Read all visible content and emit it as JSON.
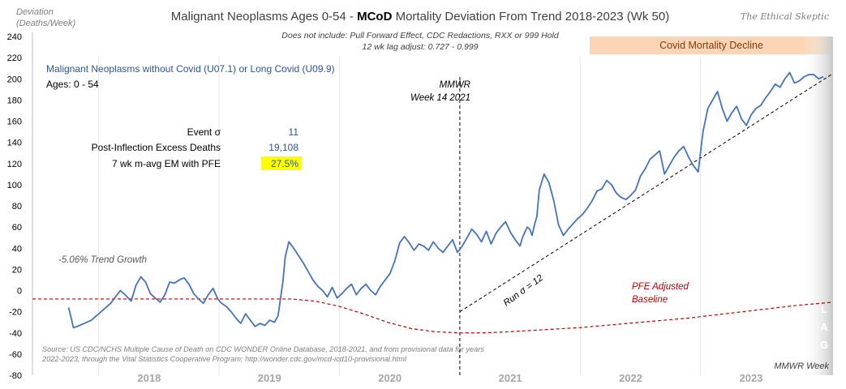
{
  "chart_data": {
    "type": "line",
    "title_prefix": "Malignant Neoplasms Ages 0-54 - ",
    "title_bold": "MCoD",
    "title_suffix": " Mortality Deviation From Trend  2018-2023 (Wk 50)",
    "subtitle_1": "Does not include: Pull Forward Effect,  CDC Redactions, RXX or 999 Hold",
    "subtitle_2": "12 wk lag adjust: 0.727 - 0.999",
    "watermark": "The Ethical Skeptic",
    "ylabel_1": "Deviation",
    "ylabel_2": "(Deaths/Week)",
    "xlabel": "MMWR Week",
    "ylim": [
      -80,
      240
    ],
    "y_ticks": [
      "240",
      "220",
      "200",
      "180",
      "160",
      "140",
      "120",
      "100",
      "80",
      "60",
      "40",
      "20",
      "0",
      "-20",
      "-40",
      "-60",
      "-80"
    ],
    "x_ticks": [
      "2018",
      "2019",
      "2020",
      "2021",
      "2022",
      "2023"
    ],
    "series_name": "Malignant Neoplasms without Covid (U07.1) or Long Covid (U09.9)",
    "ages_label": "Ages: 0 - 54",
    "covid_band_label": "Covid Mortality Decline",
    "mmwr_line_1": "MMWR",
    "mmwr_line_2": "Week 14 2021",
    "trend_growth": "-5.06% Trend Growth",
    "run_label": "Run σ = 12",
    "pfe_line_1": "PFE Adjusted",
    "pfe_line_2": "Baseline",
    "lag_letters": [
      "L",
      "A",
      "G"
    ],
    "stats": [
      {
        "label": "Event σ",
        "value": "11"
      },
      {
        "label": "Post-Inflection Excess Deaths",
        "value": "19,108"
      },
      {
        "label": "7 wk m-avg EM with PFE",
        "value": "27.5%"
      }
    ],
    "source_1": "Source: US CDC/NCHS Multiple Cause of Death on CDC WONDER Online Database, 2018-2021, and from provisional data for years",
    "source_2": "2022-2023, through the Vital Statistics Cooperative Program; http://wonder.cdc.gov/mcd-icd10-provisional.html",
    "series_x": [
      2017.75,
      2017.77,
      2017.79,
      2017.82,
      2017.86,
      2017.9,
      2017.94,
      2017.98,
      2018.02,
      2018.06,
      2018.1,
      2018.14,
      2018.18,
      2018.22,
      2018.27,
      2018.31,
      2018.35,
      2018.39,
      2018.43,
      2018.47,
      2018.51,
      2018.55,
      2018.59,
      2018.63,
      2018.67,
      2018.71,
      2018.75,
      2018.79,
      2018.83,
      2018.87,
      2018.91,
      2018.95,
      2018.99,
      2019.02,
      2019.06,
      2019.1,
      2019.14,
      2019.18,
      2019.22,
      2019.26,
      2019.3,
      2019.34,
      2019.38,
      2019.42,
      2019.46,
      2019.49,
      2019.51,
      2019.53,
      2019.55,
      2019.58,
      2019.62,
      2019.66,
      2019.7,
      2019.74,
      2019.78,
      2019.82,
      2019.86,
      2019.9,
      2019.94,
      2019.98,
      2020.02,
      2020.06,
      2020.1,
      2020.14,
      2020.18,
      2020.22,
      2020.26,
      2020.3,
      2020.34,
      2020.38,
      2020.42,
      2020.46,
      2020.5,
      2020.54,
      2020.58,
      2020.62,
      2020.66,
      2020.7,
      2020.74,
      2020.78,
      2020.82,
      2020.86,
      2020.9,
      2020.94,
      2020.98,
      2021.02,
      2021.06,
      2021.1,
      2021.14,
      2021.18,
      2021.22,
      2021.26,
      2021.3,
      2021.34,
      2021.38,
      2021.42,
      2021.46,
      2021.5,
      2021.52,
      2021.54,
      2021.56,
      2021.58,
      2021.6,
      2021.62,
      2021.64,
      2021.66,
      2021.7,
      2021.74,
      2021.78,
      2021.82,
      2021.86,
      2021.9,
      2021.94,
      2021.98,
      2022.02,
      2022.06,
      2022.1,
      2022.14,
      2022.18,
      2022.22,
      2022.26,
      2022.3,
      2022.34,
      2022.38,
      2022.42,
      2022.46,
      2022.5,
      2022.54,
      2022.58,
      2022.62,
      2022.66,
      2022.7,
      2022.74,
      2022.78,
      2022.82,
      2022.86,
      2022.9,
      2022.94,
      2022.98,
      2023.02,
      2023.06,
      2023.1,
      2023.14,
      2023.18,
      2023.22,
      2023.26,
      2023.3,
      2023.34,
      2023.38,
      2023.42,
      2023.46,
      2023.5,
      2023.54,
      2023.58,
      2023.62,
      2023.66,
      2023.7,
      2023.74,
      2023.78,
      2023.82,
      2023.86,
      2023.9,
      2023.94,
      2023.98,
      2024.02,
      2024.06,
      2024.1
    ],
    "series_y": [
      -16,
      -25,
      -35,
      -34,
      -32,
      -30,
      -28,
      -24,
      -20,
      -16,
      -12,
      -6,
      0,
      -4,
      -10,
      5,
      13,
      8,
      -3,
      -7,
      -11,
      -4,
      8,
      7,
      10,
      12,
      6,
      -3,
      -8,
      -12,
      -4,
      2,
      -8,
      -12,
      -15,
      -20,
      -26,
      -31,
      -22,
      -28,
      -34,
      -31,
      -33,
      -28,
      -30,
      -24,
      -8,
      8,
      32,
      46,
      40,
      33,
      26,
      18,
      10,
      4,
      0,
      -6,
      3,
      -7,
      -3,
      2,
      6,
      -4,
      2,
      6,
      0,
      -4,
      4,
      10,
      16,
      28,
      45,
      51,
      45,
      38,
      44,
      42,
      38,
      46,
      40,
      36,
      42,
      48,
      36,
      42,
      50,
      58,
      53,
      46,
      56,
      44,
      54,
      60,
      65,
      55,
      48,
      42,
      50,
      55,
      60,
      58,
      52,
      62,
      70,
      95,
      110,
      102,
      85,
      62,
      52,
      58,
      63,
      68,
      72,
      78,
      85,
      94,
      96,
      104,
      100,
      92,
      88,
      86,
      90,
      95,
      108,
      115,
      124,
      128,
      132,
      110,
      118,
      126,
      132,
      136,
      126,
      118,
      112,
      150,
      172,
      180,
      188,
      172,
      160,
      168,
      174,
      162,
      156,
      166,
      172,
      175,
      182,
      188,
      195,
      192,
      200,
      206,
      196,
      198,
      202,
      204,
      204,
      200,
      202
    ],
    "trend_x": [
      2021.0,
      2024.1
    ],
    "trend_y": [
      -20,
      205
    ],
    "pfe_x": [
      2017.45,
      2017.9,
      2018.4,
      2018.9,
      2019.4,
      2019.6,
      2019.8,
      2020.0,
      2020.2,
      2020.4,
      2020.6,
      2020.8,
      2021.0,
      2021.2,
      2021.4,
      2021.7,
      2022.0,
      2022.3,
      2022.6,
      2022.9,
      2023.2,
      2023.5,
      2023.8,
      2024.1
    ],
    "pfe_y": [
      -8,
      -8,
      -8,
      -8,
      -8,
      -8,
      -10,
      -15,
      -22,
      -30,
      -36,
      -39,
      -40,
      -40,
      -39,
      -37,
      -35,
      -32,
      -29,
      -26,
      -22,
      -18,
      -14,
      -11
    ],
    "event_x": 2021.0
  }
}
